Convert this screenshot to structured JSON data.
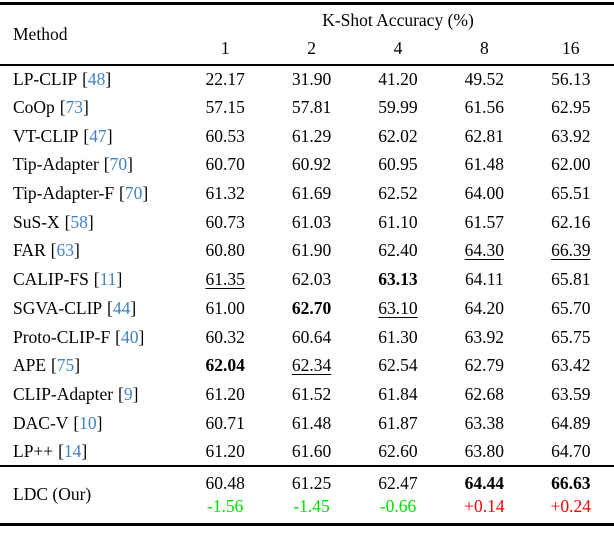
{
  "table": {
    "cite_open": "[",
    "cite_close": "]",
    "header": {
      "method_label": "Method",
      "group_label": "K-Shot Accuracy (%)",
      "shots": [
        "1",
        "2",
        "4",
        "8",
        "16"
      ]
    },
    "rows": [
      {
        "method": "LP-CLIP",
        "cite": "48",
        "values": [
          {
            "t": "22.17",
            "em": "none"
          },
          {
            "t": "31.90",
            "em": "none"
          },
          {
            "t": "41.20",
            "em": "none"
          },
          {
            "t": "49.52",
            "em": "none"
          },
          {
            "t": "56.13",
            "em": "none"
          }
        ]
      },
      {
        "method": "CoOp",
        "cite": "73",
        "values": [
          {
            "t": "57.15",
            "em": "none"
          },
          {
            "t": "57.81",
            "em": "none"
          },
          {
            "t": "59.99",
            "em": "none"
          },
          {
            "t": "61.56",
            "em": "none"
          },
          {
            "t": "62.95",
            "em": "none"
          }
        ]
      },
      {
        "method": "VT-CLIP",
        "cite": "47",
        "values": [
          {
            "t": "60.53",
            "em": "none"
          },
          {
            "t": "61.29",
            "em": "none"
          },
          {
            "t": "62.02",
            "em": "none"
          },
          {
            "t": "62.81",
            "em": "none"
          },
          {
            "t": "63.92",
            "em": "none"
          }
        ]
      },
      {
        "method": "Tip-Adapter",
        "cite": "70",
        "values": [
          {
            "t": "60.70",
            "em": "none"
          },
          {
            "t": "60.92",
            "em": "none"
          },
          {
            "t": "60.95",
            "em": "none"
          },
          {
            "t": "61.48",
            "em": "none"
          },
          {
            "t": "62.00",
            "em": "none"
          }
        ]
      },
      {
        "method": "Tip-Adapter-F",
        "cite": "70",
        "values": [
          {
            "t": "61.32",
            "em": "none"
          },
          {
            "t": "61.69",
            "em": "none"
          },
          {
            "t": "62.52",
            "em": "none"
          },
          {
            "t": "64.00",
            "em": "none"
          },
          {
            "t": "65.51",
            "em": "none"
          }
        ]
      },
      {
        "method": "SuS-X",
        "cite": "58",
        "values": [
          {
            "t": "60.73",
            "em": "none"
          },
          {
            "t": "61.03",
            "em": "none"
          },
          {
            "t": "61.10",
            "em": "none"
          },
          {
            "t": "61.57",
            "em": "none"
          },
          {
            "t": "62.16",
            "em": "none"
          }
        ]
      },
      {
        "method": "FAR",
        "cite": "63",
        "values": [
          {
            "t": "60.80",
            "em": "none"
          },
          {
            "t": "61.90",
            "em": "none"
          },
          {
            "t": "62.40",
            "em": "none"
          },
          {
            "t": "64.30",
            "em": "underline"
          },
          {
            "t": "66.39",
            "em": "underline"
          }
        ]
      },
      {
        "method": "CALIP-FS",
        "cite": "11",
        "values": [
          {
            "t": "61.35",
            "em": "underline"
          },
          {
            "t": "62.03",
            "em": "none"
          },
          {
            "t": "63.13",
            "em": "bold"
          },
          {
            "t": "64.11",
            "em": "none"
          },
          {
            "t": "65.81",
            "em": "none"
          }
        ]
      },
      {
        "method": "SGVA-CLIP",
        "cite": "44",
        "values": [
          {
            "t": "61.00",
            "em": "none"
          },
          {
            "t": "62.70",
            "em": "bold"
          },
          {
            "t": "63.10",
            "em": "underline"
          },
          {
            "t": "64.20",
            "em": "none"
          },
          {
            "t": "65.70",
            "em": "none"
          }
        ]
      },
      {
        "method": "Proto-CLIP-F",
        "cite": "40",
        "values": [
          {
            "t": "60.32",
            "em": "none"
          },
          {
            "t": "60.64",
            "em": "none"
          },
          {
            "t": "61.30",
            "em": "none"
          },
          {
            "t": "63.92",
            "em": "none"
          },
          {
            "t": "65.75",
            "em": "none"
          }
        ]
      },
      {
        "method": "APE",
        "cite": "75",
        "values": [
          {
            "t": "62.04",
            "em": "bold"
          },
          {
            "t": "62.34",
            "em": "underline"
          },
          {
            "t": "62.54",
            "em": "none"
          },
          {
            "t": "62.79",
            "em": "none"
          },
          {
            "t": "63.42",
            "em": "none"
          }
        ]
      },
      {
        "method": "CLIP-Adapter",
        "cite": "9",
        "values": [
          {
            "t": "61.20",
            "em": "none"
          },
          {
            "t": "61.52",
            "em": "none"
          },
          {
            "t": "61.84",
            "em": "none"
          },
          {
            "t": "62.68",
            "em": "none"
          },
          {
            "t": "63.59",
            "em": "none"
          }
        ]
      },
      {
        "method": "DAC-V",
        "cite": "10",
        "values": [
          {
            "t": "60.71",
            "em": "none"
          },
          {
            "t": "61.48",
            "em": "none"
          },
          {
            "t": "61.87",
            "em": "none"
          },
          {
            "t": "63.38",
            "em": "none"
          },
          {
            "t": "64.89",
            "em": "none"
          }
        ]
      },
      {
        "method": "LP++",
        "cite": "14",
        "values": [
          {
            "t": "61.20",
            "em": "none"
          },
          {
            "t": "61.60",
            "em": "none"
          },
          {
            "t": "62.60",
            "em": "none"
          },
          {
            "t": "63.80",
            "em": "none"
          },
          {
            "t": "64.70",
            "em": "none"
          }
        ]
      }
    ],
    "footer": {
      "method": "LDC (Our)",
      "values": [
        {
          "t": "60.48",
          "em": "none"
        },
        {
          "t": "61.25",
          "em": "none"
        },
        {
          "t": "62.47",
          "em": "none"
        },
        {
          "t": "64.44",
          "em": "bold"
        },
        {
          "t": "66.63",
          "em": "bold"
        }
      ],
      "deltas": [
        {
          "t": "-1.56",
          "tone": "negative"
        },
        {
          "t": "-1.45",
          "tone": "negative"
        },
        {
          "t": "-0.66",
          "tone": "negative"
        },
        {
          "t": "+0.14",
          "tone": "positive"
        },
        {
          "t": "+0.24",
          "tone": "positive"
        }
      ]
    },
    "colors": {
      "citation_blue": "#4183C4",
      "delta_negative_green": "#00E000",
      "delta_positive_red": "#FF0000",
      "rule_black": "#000000"
    }
  }
}
